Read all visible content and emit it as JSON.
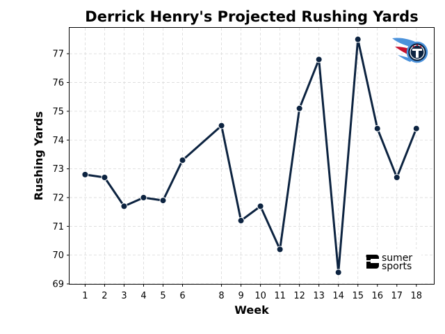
{
  "colors": {
    "line": "#0c2340",
    "marker_edge": "#ffffff",
    "grid": "#d9d9d9",
    "team_navy": "#0c2340",
    "team_blue": "#4b92db",
    "team_red": "#c8102e"
  },
  "logos": {
    "team": "titans-logo",
    "brand_line1": "sumer",
    "brand_line2": "sports"
  },
  "chart_data": {
    "type": "line",
    "title": "Derrick Henry's Projected Rushing Yards",
    "xlabel": "Week",
    "ylabel": "Rushing Yards",
    "x": [
      1,
      2,
      3,
      4,
      5,
      6,
      8,
      9,
      10,
      11,
      12,
      13,
      14,
      15,
      16,
      17,
      18
    ],
    "y": [
      72.8,
      72.7,
      71.7,
      72.0,
      71.9,
      73.3,
      74.5,
      71.2,
      71.7,
      70.2,
      75.1,
      76.8,
      69.4,
      77.5,
      74.4,
      72.7,
      74.4
    ],
    "xticks": [
      "1",
      "2",
      "3",
      "4",
      "5",
      "6",
      "8",
      "9",
      "10",
      "11",
      "12",
      "13",
      "14",
      "15",
      "16",
      "17",
      "18"
    ],
    "yticks": [
      "69",
      "70",
      "71",
      "72",
      "73",
      "74",
      "75",
      "76",
      "77"
    ],
    "xlim": [
      0.2,
      18.9
    ],
    "ylim": [
      69.0,
      77.9
    ],
    "grid": true,
    "marker": "circle"
  }
}
